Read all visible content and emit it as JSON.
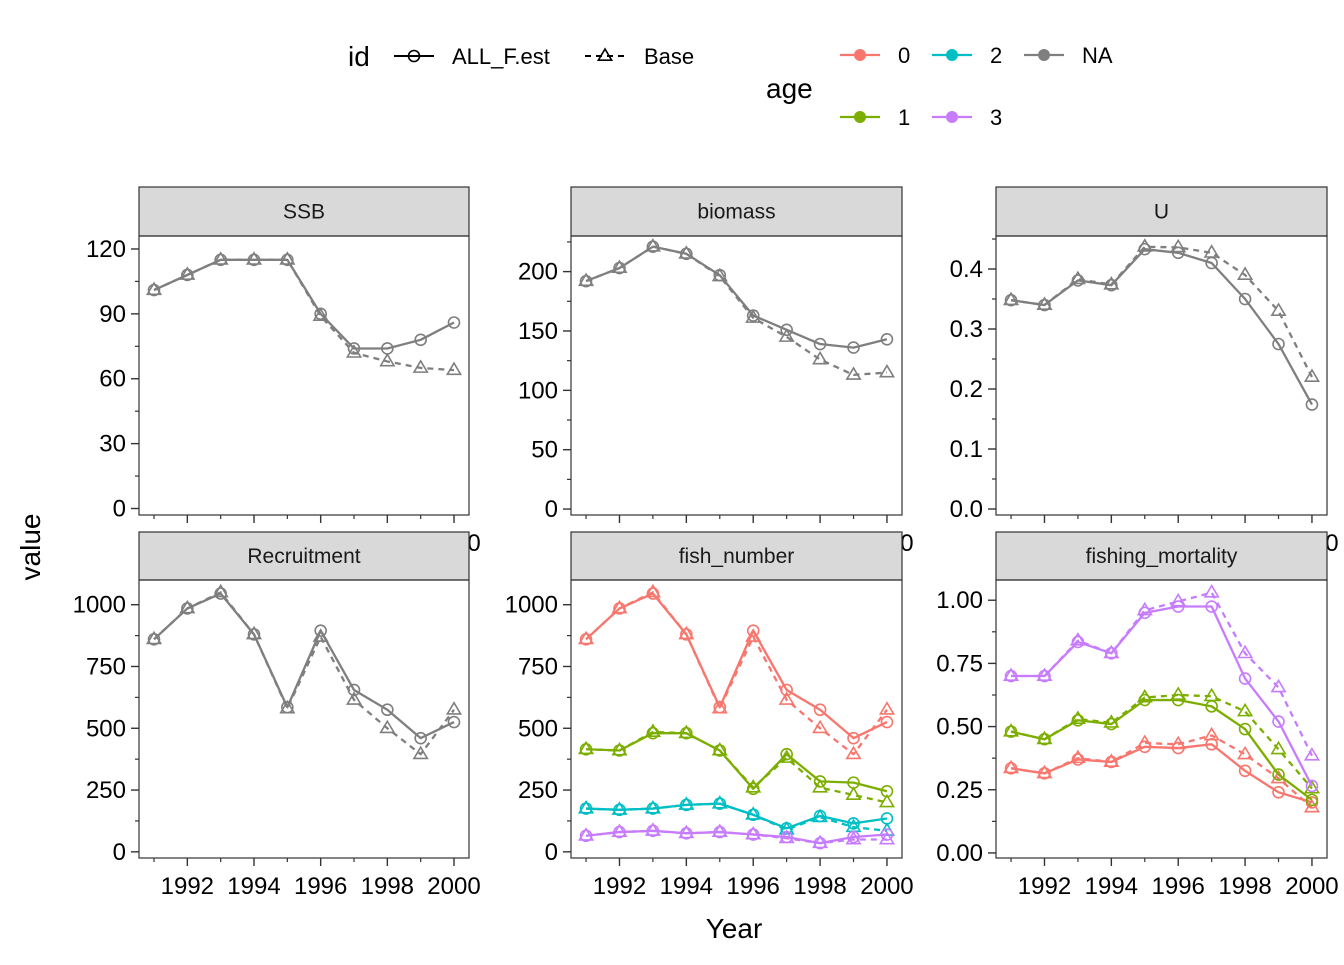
{
  "chart_data": {
    "type": "line",
    "xlabel": "Year",
    "ylabel": "value",
    "x": [
      1991,
      1992,
      1993,
      1994,
      1995,
      1996,
      1997,
      1998,
      1999,
      2000
    ],
    "x_tick_labels": [
      "1992",
      "1994",
      "1996",
      "1998",
      "2000"
    ],
    "grid": false,
    "legend": {
      "position": "top",
      "id_title": "id",
      "id_entries": [
        {
          "label": "ALL_F.est",
          "linetype": "solid",
          "shape": "circle"
        },
        {
          "label": "Base",
          "linetype": "dashed",
          "shape": "triangle"
        }
      ],
      "age_title": "age",
      "age_entries": [
        {
          "label": "0",
          "color": "#F8766D"
        },
        {
          "label": "1",
          "color": "#7CAE00"
        },
        {
          "label": "2",
          "color": "#00BFC4"
        },
        {
          "label": "3",
          "color": "#C77CFF"
        },
        {
          "label": "NA",
          "color": "#7F7F7F"
        }
      ]
    },
    "panels": [
      {
        "title": "SSB",
        "ylim": [
          -3,
          126
        ],
        "y_ticks": [
          0,
          30,
          60,
          90,
          120
        ],
        "y_tick_labels": [
          "0",
          "30",
          "60",
          "90",
          "120"
        ],
        "y_minor": [
          15,
          45,
          75,
          105
        ],
        "series": [
          {
            "id": "ALL_F.est",
            "age": "NA",
            "values": [
              101,
              108,
              115,
              115,
              115,
              90,
              74,
              74,
              78,
              86
            ]
          },
          {
            "id": "Base",
            "age": "NA",
            "values": [
              101,
              108,
              115,
              115,
              115,
              89,
              72,
              68,
              65,
              64
            ]
          }
        ]
      },
      {
        "title": "biomass",
        "ylim": [
          -5,
          230
        ],
        "y_ticks": [
          0,
          50,
          100,
          150,
          200
        ],
        "y_tick_labels": [
          "0",
          "50",
          "100",
          "150",
          "200"
        ],
        "y_minor": [
          25,
          75,
          125,
          175,
          225
        ],
        "series": [
          {
            "id": "ALL_F.est",
            "age": "NA",
            "values": [
              192,
              203,
              221,
              215,
              197,
              163,
              151,
              139,
              136,
              143
            ]
          },
          {
            "id": "Base",
            "age": "NA",
            "values": [
              192,
              203,
              221,
              215,
              196,
              161,
              145,
              126,
              113,
              115
            ]
          }
        ]
      },
      {
        "title": "U",
        "ylim": [
          -0.01,
          0.455
        ],
        "y_ticks": [
          0.0,
          0.1,
          0.2,
          0.3,
          0.4
        ],
        "y_tick_labels": [
          "0.0",
          "0.1",
          "0.2",
          "0.3",
          "0.4"
        ],
        "y_minor": [
          0.05,
          0.15,
          0.25,
          0.35,
          0.45
        ],
        "series": [
          {
            "id": "ALL_F.est",
            "age": "NA",
            "values": [
              0.348,
              0.34,
              0.381,
              0.373,
              0.433,
              0.427,
              0.41,
              0.35,
              0.275,
              0.174
            ]
          },
          {
            "id": "Base",
            "age": "NA",
            "values": [
              0.348,
              0.34,
              0.383,
              0.374,
              0.437,
              0.436,
              0.427,
              0.39,
              0.33,
              0.22
            ]
          }
        ]
      },
      {
        "title": "Recruitment",
        "ylim": [
          -25,
          1100
        ],
        "y_ticks": [
          0,
          250,
          500,
          750,
          1000
        ],
        "y_tick_labels": [
          "0",
          "250",
          "500",
          "750",
          "1000"
        ],
        "y_minor": [
          125,
          375,
          625,
          875
        ],
        "series": [
          {
            "id": "ALL_F.est",
            "age": "NA",
            "values": [
              860,
              985,
              1045,
              880,
              585,
              895,
              655,
              575,
              460,
              525
            ]
          },
          {
            "id": "Base",
            "age": "NA",
            "values": [
              860,
              985,
              1050,
              880,
              580,
              870,
              615,
              500,
              395,
              575
            ]
          }
        ]
      },
      {
        "title": "fish_number",
        "ylim": [
          -25,
          1100
        ],
        "y_ticks": [
          0,
          250,
          500,
          750,
          1000
        ],
        "y_tick_labels": [
          "0",
          "250",
          "500",
          "750",
          "1000"
        ],
        "y_minor": [
          125,
          375,
          625,
          875
        ],
        "series": [
          {
            "id": "ALL_F.est",
            "age": "0",
            "values": [
              860,
              985,
              1045,
              880,
              585,
              895,
              655,
              575,
              460,
              525
            ]
          },
          {
            "id": "Base",
            "age": "0",
            "values": [
              860,
              985,
              1050,
              880,
              580,
              870,
              615,
              500,
              395,
              575
            ]
          },
          {
            "id": "ALL_F.est",
            "age": "1",
            "values": [
              415,
              410,
              480,
              480,
              410,
              255,
              395,
              285,
              280,
              245
            ]
          },
          {
            "id": "Base",
            "age": "1",
            "values": [
              415,
              410,
              485,
              480,
              410,
              260,
              380,
              260,
              230,
              200
            ]
          },
          {
            "id": "ALL_F.est",
            "age": "2",
            "values": [
              175,
              170,
              175,
              190,
              195,
              150,
              95,
              145,
              115,
              135
            ]
          },
          {
            "id": "Base",
            "age": "2",
            "values": [
              175,
              170,
              175,
              190,
              195,
              150,
              90,
              140,
              100,
              85
            ]
          },
          {
            "id": "ALL_F.est",
            "age": "3",
            "values": [
              65,
              80,
              85,
              75,
              80,
              70,
              60,
              35,
              60,
              70
            ]
          },
          {
            "id": "Base",
            "age": "3",
            "values": [
              65,
              80,
              85,
              75,
              80,
              70,
              55,
              35,
              50,
              50
            ]
          }
        ]
      },
      {
        "title": "fishing_mortality",
        "ylim": [
          -0.02,
          1.08
        ],
        "y_ticks": [
          0.0,
          0.25,
          0.5,
          0.75,
          1.0
        ],
        "y_tick_labels": [
          "0.00",
          "0.25",
          "0.50",
          "0.75",
          "1.00"
        ],
        "y_minor": [
          0.125,
          0.375,
          0.625,
          0.875
        ],
        "series": [
          {
            "id": "ALL_F.est",
            "age": "0",
            "values": [
              0.335,
              0.315,
              0.37,
              0.36,
              0.42,
              0.415,
              0.43,
              0.325,
              0.24,
              0.2
            ]
          },
          {
            "id": "Base",
            "age": "0",
            "values": [
              0.335,
              0.315,
              0.375,
              0.36,
              0.435,
              0.43,
              0.465,
              0.39,
              0.295,
              0.18
            ]
          },
          {
            "id": "ALL_F.est",
            "age": "1",
            "values": [
              0.48,
              0.45,
              0.525,
              0.51,
              0.605,
              0.605,
              0.58,
              0.49,
              0.31,
              0.21
            ]
          },
          {
            "id": "Base",
            "age": "1",
            "values": [
              0.48,
              0.45,
              0.53,
              0.515,
              0.615,
              0.625,
              0.62,
              0.56,
              0.41,
              0.255
            ]
          },
          {
            "id": "ALL_F.est",
            "age": "3",
            "values": [
              0.7,
              0.7,
              0.835,
              0.79,
              0.95,
              0.975,
              0.975,
              0.69,
              0.52,
              0.265
            ]
          },
          {
            "id": "Base",
            "age": "3",
            "values": [
              0.7,
              0.7,
              0.84,
              0.79,
              0.96,
              0.995,
              1.03,
              0.79,
              0.655,
              0.385
            ]
          }
        ]
      }
    ]
  }
}
